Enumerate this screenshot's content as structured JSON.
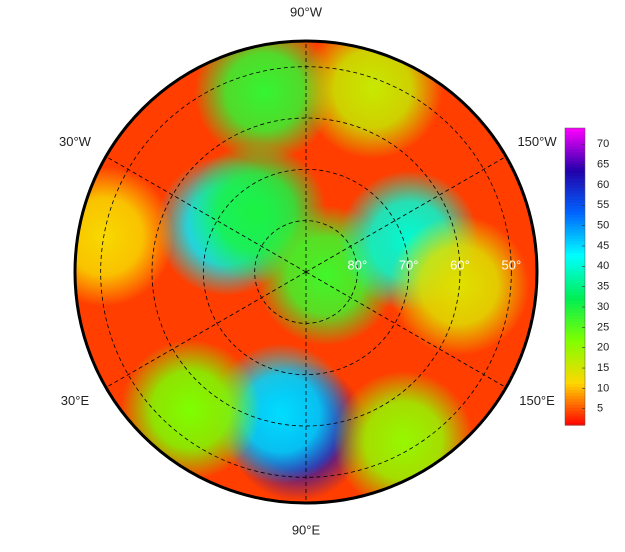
{
  "map": {
    "projection": "north-polar",
    "lat_limit": 45,
    "background_value": 4,
    "lon_labels": [
      {
        "value": -90,
        "label": "90°W"
      },
      {
        "value": -30,
        "label": "30°W"
      },
      {
        "value": -150,
        "label": "150°W"
      },
      {
        "value": 30,
        "label": "30°E"
      },
      {
        "value": 150,
        "label": "150°E"
      },
      {
        "value": 90,
        "label": "90°E"
      }
    ],
    "lat_labels": [
      {
        "value": 80,
        "label": "80°"
      },
      {
        "value": 70,
        "label": "70°"
      },
      {
        "value": 60,
        "label": "60°"
      },
      {
        "value": 50,
        "label": "50°"
      }
    ],
    "field": [
      {
        "lat": 59,
        "lon": 87,
        "value": 62
      },
      {
        "lat": 62,
        "lon": 80,
        "value": 45
      },
      {
        "lat": 72,
        "lon": -30,
        "value": 44
      },
      {
        "lat": 75,
        "lon": -50,
        "value": 30
      },
      {
        "lat": 86,
        "lon": 170,
        "value": 27
      },
      {
        "lat": 69,
        "lon": -163,
        "value": 40
      },
      {
        "lat": 54,
        "lon": -77,
        "value": 28
      },
      {
        "lat": 52,
        "lon": -110,
        "value": 16
      },
      {
        "lat": 55,
        "lon": 50,
        "value": 22
      },
      {
        "lat": 52,
        "lon": 120,
        "value": 20
      },
      {
        "lat": 60,
        "lon": 175,
        "value": 14
      },
      {
        "lat": 50,
        "lon": -10,
        "value": 12
      }
    ],
    "colorbar": {
      "range": [
        1,
        74
      ],
      "ticks": [
        5,
        10,
        15,
        20,
        25,
        30,
        35,
        40,
        45,
        50,
        55,
        60,
        65,
        70
      ],
      "colors": [
        "#ff0000",
        "#ffd700",
        "#7fff00",
        "#00ee55",
        "#00ffff",
        "#0066ff",
        "#2200aa",
        "#ff00ff"
      ]
    }
  }
}
